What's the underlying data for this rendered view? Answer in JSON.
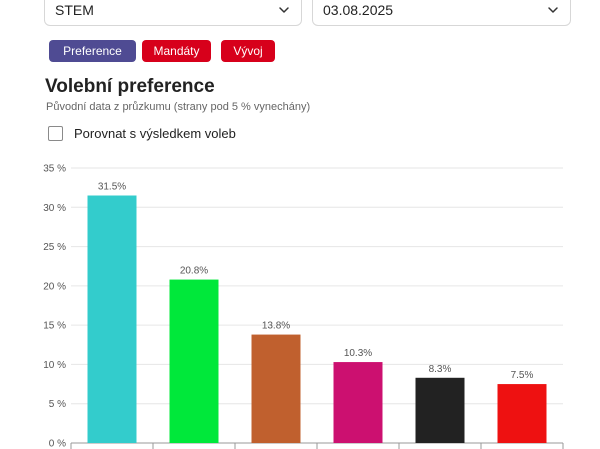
{
  "controls": {
    "pollster": {
      "value": "STEM",
      "icon": "chevron-down-icon"
    },
    "date": {
      "value": "03.08.2025",
      "icon": "chevron-down-icon"
    }
  },
  "tabs": [
    {
      "label": "Preference",
      "active": true,
      "color": "#4f4b93"
    },
    {
      "label": "Mandáty",
      "active": false,
      "color": "#d7001b"
    },
    {
      "label": "Vývoj",
      "active": false,
      "color": "#d7001b"
    }
  ],
  "header": {
    "title": "Volební preference",
    "subtitle": "Původní data z průzkumu (strany pod 5 % vynechány)"
  },
  "compare": {
    "label": "Porovnat s výsledkem voleb",
    "checked": false
  },
  "chart_data": {
    "type": "bar",
    "values": [
      31.5,
      20.8,
      13.8,
      10.3,
      8.3,
      7.5
    ],
    "data_labels": [
      "31.5%",
      "20.8%",
      "13.8%",
      "10.3%",
      "8.3%",
      "7.5%"
    ],
    "colors": [
      "#33cccc",
      "#00e83a",
      "#c0602e",
      "#cc1070",
      "#222222",
      "#ee1111"
    ],
    "ylim": [
      0,
      35
    ],
    "yticks": [
      0,
      5,
      10,
      15,
      20,
      25,
      30,
      35
    ],
    "ytick_labels": [
      "0 %",
      "5 %",
      "10 %",
      "15 %",
      "20 %",
      "25 %",
      "30 %",
      "35 %"
    ],
    "grid": true
  }
}
